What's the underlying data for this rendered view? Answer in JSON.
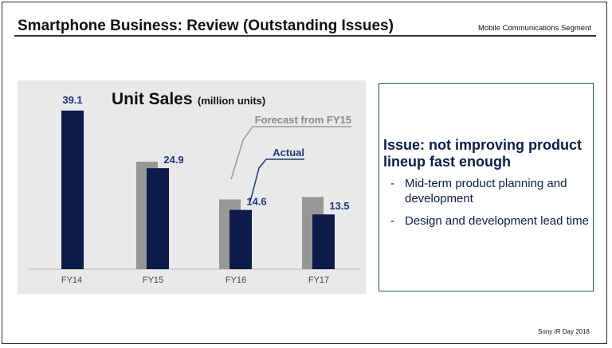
{
  "header": {
    "title": "Smartphone Business: Review (Outstanding Issues)",
    "segment": "Mobile Communications Segment"
  },
  "chart_data": {
    "type": "bar",
    "title": "Unit Sales",
    "unit": "(million units)",
    "categories": [
      "FY14",
      "FY15",
      "FY16",
      "FY17"
    ],
    "ylim": [
      0,
      43
    ],
    "series": [
      {
        "name": "Forecast from FY15",
        "values": [
          null,
          26.5,
          17.2,
          17.8
        ],
        "color": "#979797",
        "show_labels": false
      },
      {
        "name": "Actual",
        "values": [
          39.1,
          24.9,
          14.6,
          13.5
        ],
        "color": "#0d1b4a",
        "show_labels": true
      }
    ],
    "data_labels": [
      "39.1",
      "24.9",
      "14.6",
      "13.5"
    ],
    "label_color": "#1c3a76",
    "background": "#e9e9e9"
  },
  "issue": {
    "heading": "Issue: not improving product lineup fast enough",
    "bullets": [
      "Mid-term product planning and development",
      "Design and development lead time"
    ],
    "dash": "-"
  },
  "footer": "Sony IR Day 2018"
}
